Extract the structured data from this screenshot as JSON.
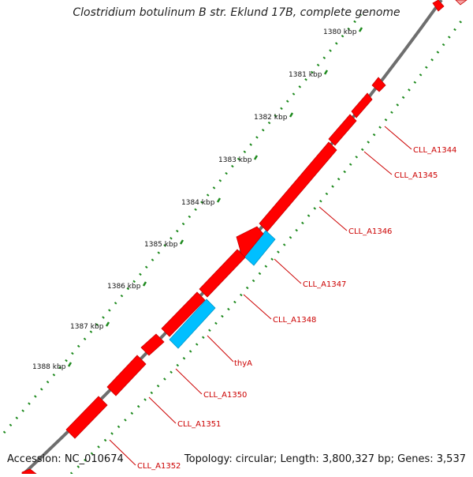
{
  "title": "Clostridium botulinum B str. Eklund 17B, complete genome",
  "footer": {
    "accession": "Accession: NC_010674",
    "summary": "Topology: circular; Length: 3,800,327 bp; Genes: 3,537"
  },
  "ticks": [
    "1380 kbp",
    "1381 kbp",
    "1382 kbp",
    "1383 kbp",
    "1384 kbp",
    "1385 kbp",
    "1386 kbp",
    "1387 kbp",
    "1388 kbp"
  ],
  "genes": [
    {
      "label": "CLL_A1344",
      "color": "#ff0000"
    },
    {
      "label": "CLL_A1345",
      "color": "#ff0000"
    },
    {
      "label": "CLL_A1346",
      "color": "#ff0000"
    },
    {
      "label": "CLL_A1347",
      "color": "#00bfff"
    },
    {
      "label": "CLL_A1348",
      "color": "#ff0000"
    },
    {
      "label": "thyA",
      "color": "#00bfff"
    },
    {
      "label": "CLL_A1350",
      "color": "#ff0000"
    },
    {
      "label": "CLL_A1351",
      "color": "#ff0000"
    },
    {
      "label": "CLL_A1352",
      "color": "#ff0000"
    }
  ],
  "colors": {
    "backbone": "#6e6e6e",
    "ticks": "#1e8a1e",
    "forward_gene": "#ff0000",
    "reverse_gene": "#00bfff",
    "label": "#cc0000"
  }
}
